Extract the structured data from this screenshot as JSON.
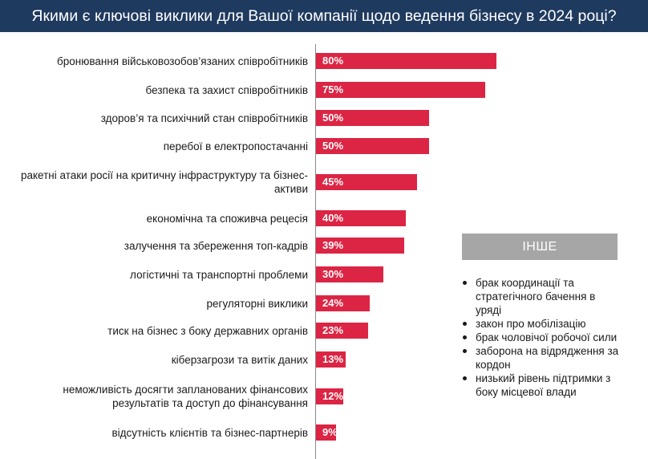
{
  "header": {
    "title": "Якими є ключові виклики для Вашої компанії щодо ведення бізнесу в 2024 році?"
  },
  "colors": {
    "header_bg": "#1f3a5f",
    "bar": "#dc2544",
    "other_bg": "#a6a6a6"
  },
  "chart_data": {
    "type": "bar",
    "orientation": "horizontal",
    "title": "Якими є ключові виклики для Вашої компанії щодо ведення бізнесу в 2024 році?",
    "unit": "%",
    "categories": [
      "бронювання військовозобов’язаних співробітників",
      "безпека та захист співробітників",
      "здоров’я та психічний стан співробітників",
      "перебої в електропостачанні",
      "ракетні атаки росії на критичну інфраструктуру та бізнес-активи",
      "економічна та споживча рецесія",
      "залучення та збереження топ-кадрів",
      "логістичні та транспортні проблеми",
      "регуляторні виклики",
      "тиск на бізнес з боку державних органів",
      "кібер­загрози та витік даних",
      "неможливість досягти запланованих фінансових результатів та доступ до фінансування",
      "відсутність клієнтів та бізнес-партнерів"
    ],
    "labels": [
      "80%",
      "75%",
      "50%",
      "50%",
      "45%",
      "40%",
      "39%",
      "30%",
      "24%",
      "23%",
      "13%",
      "12%",
      "9%"
    ],
    "values": [
      80,
      75,
      50,
      50,
      45,
      40,
      39,
      30,
      24,
      23,
      13,
      12,
      9
    ],
    "xlim": [
      0,
      100
    ]
  },
  "other": {
    "title": "ІНШЕ",
    "items": [
      "брак координації та стратегічного бачення в уряді",
      "закон про мобілізацію",
      "брак чоловічої робочої сили",
      "заборона на відрядження за кордон",
      "низький рівень підтримки з боку місцевої влади"
    ]
  }
}
